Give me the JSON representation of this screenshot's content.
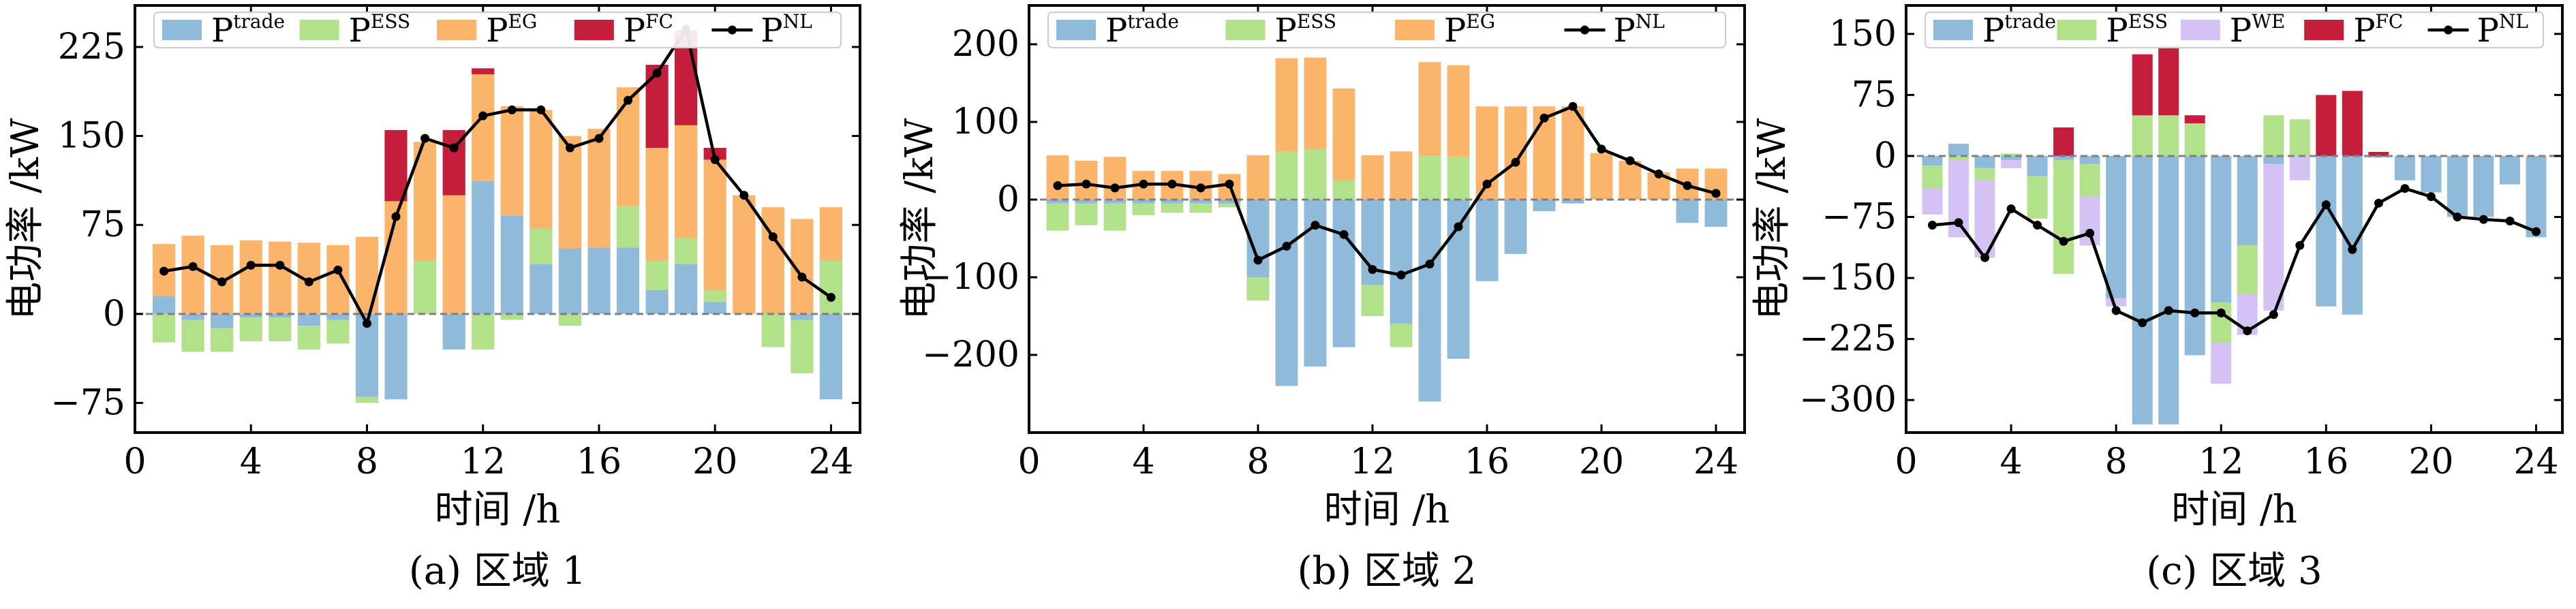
{
  "colors": {
    "trade": "#8fbad9",
    "ess": "#b3e08a",
    "eg": "#fbb46c",
    "fc": "#c41e3a",
    "we": "#d5c2f5",
    "nl": "#000000"
  },
  "chart_data": [
    {
      "type": "bar",
      "caption": "(a) 区域 1",
      "xlabel": "时间 /h",
      "ylabel": "电功率 /kW",
      "xlim": [
        0,
        25
      ],
      "xticks": [
        0,
        4,
        8,
        12,
        16,
        20,
        24
      ],
      "ylim": [
        -100,
        260
      ],
      "yticks": [
        -75,
        0,
        75,
        150,
        225
      ],
      "legend": [
        "trade",
        "ESS",
        "EG",
        "FC",
        "NL"
      ],
      "x": [
        1,
        2,
        3,
        4,
        5,
        6,
        7,
        8,
        9,
        10,
        11,
        12,
        13,
        14,
        15,
        16,
        17,
        18,
        19,
        20,
        21,
        22,
        23,
        24
      ],
      "series": [
        {
          "key": "trade",
          "name": "trade",
          "values": [
            15,
            -5,
            -12,
            -3,
            -3,
            -10,
            -5,
            -70,
            -72,
            0,
            -30,
            112,
            83,
            42,
            55,
            56,
            56,
            20,
            42,
            10,
            0,
            0,
            -5,
            -72
          ]
        },
        {
          "key": "ess",
          "name": "ESS",
          "values": [
            -24,
            -27,
            -20,
            -20,
            -20,
            -20,
            -20,
            -5,
            0,
            45,
            0,
            -30,
            -5,
            30,
            -10,
            0,
            35,
            25,
            22,
            10,
            0,
            -28,
            -45,
            45
          ]
        },
        {
          "key": "eg",
          "name": "EG",
          "values": [
            44,
            66,
            58,
            62,
            61,
            60,
            58,
            65,
            95,
            100,
            100,
            90,
            92,
            100,
            95,
            100,
            100,
            95,
            95,
            110,
            100,
            90,
            80,
            45
          ]
        },
        {
          "key": "fc",
          "name": "FC",
          "values": [
            0,
            0,
            0,
            0,
            0,
            0,
            0,
            0,
            60,
            0,
            55,
            5,
            0,
            0,
            0,
            0,
            0,
            70,
            80,
            10,
            0,
            0,
            0,
            0
          ]
        },
        {
          "key": "nl",
          "name": "NL",
          "kind": "line",
          "values": [
            36,
            40,
            27,
            41,
            41,
            27,
            37,
            -8,
            82,
            148,
            140,
            167,
            172,
            172,
            140,
            148,
            180,
            203,
            240,
            130,
            100,
            65,
            31,
            14
          ]
        }
      ]
    },
    {
      "type": "bar",
      "caption": "(b) 区域 2",
      "xlabel": "时间 /h",
      "ylabel": "电功率 /kW",
      "xlim": [
        0,
        25
      ],
      "xticks": [
        0,
        4,
        8,
        12,
        16,
        20,
        24
      ],
      "ylim": [
        -300,
        250
      ],
      "yticks": [
        -200,
        -100,
        0,
        100,
        200
      ],
      "legend": [
        "trade",
        "ESS",
        "EG",
        "NL"
      ],
      "x": [
        1,
        2,
        3,
        4,
        5,
        6,
        7,
        8,
        9,
        10,
        11,
        12,
        13,
        14,
        15,
        16,
        17,
        18,
        19,
        20,
        21,
        22,
        23,
        24
      ],
      "series": [
        {
          "key": "trade",
          "name": "trade",
          "values": [
            -5,
            -5,
            -5,
            -5,
            -5,
            -5,
            -5,
            -100,
            -240,
            -215,
            -190,
            -110,
            -160,
            -260,
            -205,
            -105,
            -70,
            -15,
            -5,
            0,
            0,
            0,
            -30,
            -35
          ]
        },
        {
          "key": "ess",
          "name": "ESS",
          "values": [
            -35,
            -28,
            -35,
            -15,
            -12,
            -12,
            -5,
            -30,
            62,
            65,
            25,
            -40,
            -30,
            57,
            55,
            0,
            0,
            0,
            0,
            0,
            0,
            0,
            0,
            0
          ]
        },
        {
          "key": "eg",
          "name": "EG",
          "values": [
            57,
            50,
            55,
            37,
            37,
            37,
            33,
            57,
            120,
            118,
            118,
            57,
            62,
            120,
            118,
            120,
            120,
            120,
            120,
            60,
            50,
            35,
            40,
            40
          ]
        },
        {
          "key": "nl",
          "name": "NL",
          "kind": "line",
          "values": [
            18,
            20,
            15,
            20,
            20,
            15,
            20,
            -78,
            -60,
            -33,
            -45,
            -90,
            -97,
            -83,
            -35,
            20,
            48,
            105,
            120,
            65,
            50,
            33,
            18,
            8
          ]
        }
      ]
    },
    {
      "type": "bar",
      "caption": "(c) 区域 3",
      "xlabel": "时间 /h",
      "ylabel": "电功率 /kW",
      "xlim": [
        0,
        25
      ],
      "xticks": [
        0,
        4,
        8,
        12,
        16,
        20,
        24
      ],
      "ylim": [
        -340,
        185
      ],
      "yticks": [
        -300,
        -225,
        -150,
        -75,
        0,
        75,
        150
      ],
      "legend": [
        "trade",
        "ESS",
        "WE",
        "FC",
        "NL"
      ],
      "x": [
        1,
        2,
        3,
        4,
        5,
        6,
        7,
        8,
        9,
        10,
        11,
        12,
        13,
        14,
        15,
        16,
        17,
        18,
        19,
        20,
        21,
        22,
        23,
        24
      ],
      "series": [
        {
          "key": "trade",
          "name": "trade",
          "values": [
            -12,
            15,
            -15,
            -5,
            -25,
            -5,
            -10,
            -175,
            -330,
            -330,
            -245,
            -180,
            -110,
            -10,
            0,
            -185,
            -195,
            -2,
            -30,
            -45,
            -75,
            -75,
            -35,
            -100
          ]
        },
        {
          "key": "ess",
          "name": "ESS",
          "values": [
            -28,
            -5,
            -15,
            3,
            -52,
            -140,
            -40,
            0,
            50,
            50,
            40,
            -50,
            -60,
            50,
            45,
            0,
            0,
            0,
            0,
            0,
            0,
            0,
            0,
            0
          ]
        },
        {
          "key": "we",
          "name": "WE",
          "values": [
            -32,
            -95,
            -95,
            -10,
            0,
            0,
            -60,
            -10,
            0,
            0,
            0,
            -50,
            -50,
            -180,
            -30,
            0,
            0,
            0,
            0,
            0,
            0,
            0,
            0,
            0
          ]
        },
        {
          "key": "fc",
          "name": "FC",
          "values": [
            0,
            0,
            0,
            0,
            0,
            35,
            0,
            0,
            75,
            85,
            10,
            0,
            0,
            0,
            0,
            75,
            80,
            5,
            0,
            0,
            0,
            0,
            0,
            0
          ]
        },
        {
          "key": "nl",
          "name": "NL",
          "kind": "line",
          "values": [
            -85,
            -82,
            -125,
            -65,
            -85,
            -105,
            -95,
            -190,
            -205,
            -190,
            -193,
            -193,
            -215,
            -195,
            -110,
            -60,
            -115,
            -58,
            -40,
            -50,
            -75,
            -78,
            -80,
            -93
          ]
        }
      ]
    }
  ]
}
